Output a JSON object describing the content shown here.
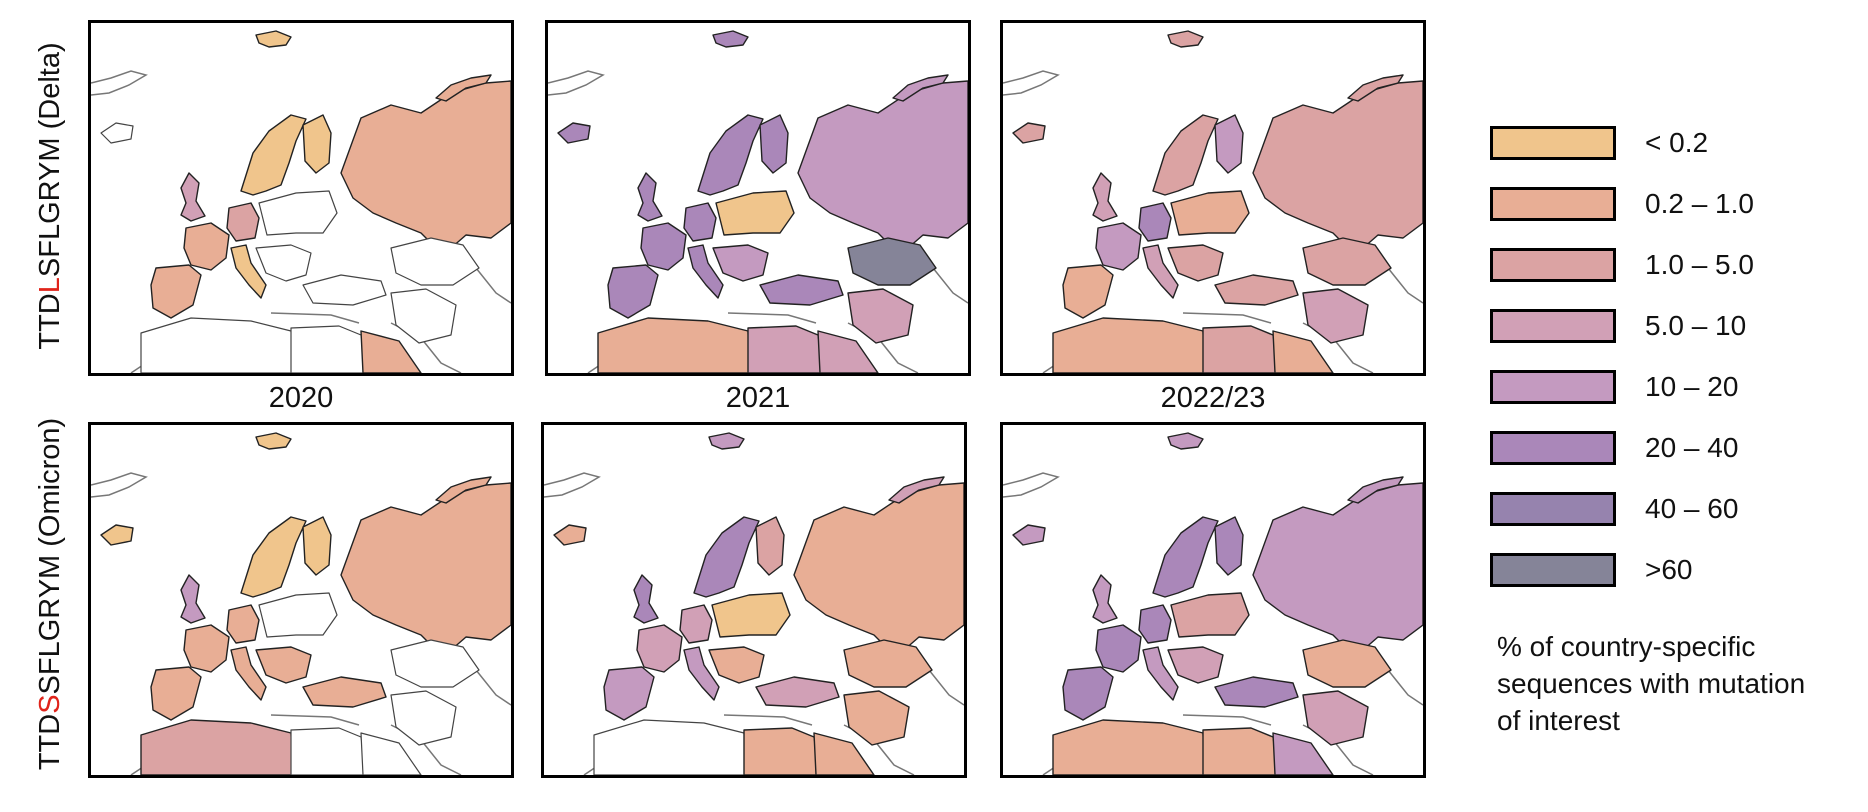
{
  "rows": [
    {
      "prefix": "TTD",
      "mutation": "L",
      "suffix": "SFLGRYM (Delta)"
    },
    {
      "prefix": "TTD",
      "mutation": "S",
      "suffix": "SFLGRYM (Omicron)"
    }
  ],
  "years": [
    "2020",
    "2021",
    "2022/23"
  ],
  "legend": {
    "items": [
      {
        "label": "< 0.2",
        "color": "#f0c58c"
      },
      {
        "label": "0.2 – 1.0",
        "color": "#e8ae95"
      },
      {
        "label": "1.0 – 5.0",
        "color": "#dba3a3"
      },
      {
        "label": "5.0 – 10",
        "color": "#d1a0b6"
      },
      {
        "label": "10 – 20",
        "color": "#c49ac0"
      },
      {
        "label": "20 – 40",
        "color": "#aa87b9"
      },
      {
        "label": "40 – 60",
        "color": "#9683ae"
      },
      {
        "label": ">60",
        "color": "#858498"
      }
    ],
    "caption": [
      "% of country-specific",
      "sequences with mutation",
      "of interest"
    ]
  },
  "map_data": {
    "country_bins": [
      {
        "scandinavia": 0,
        "finland": 0,
        "russia": 1,
        "iberia": 1,
        "france": 1,
        "uk": 3,
        "germany": 2,
        "italy": 0,
        "turkey": 9,
        "north_africa": 9,
        "egypt_libya": 9,
        "arabia": 1,
        "iran": 9,
        "central_asia": 9,
        "iceland": 9,
        "svalbard": 0,
        "novaya_zemlya": 1,
        "balkans": 9,
        "east_europe": 9
      },
      {
        "scandinavia": 5,
        "finland": 5,
        "russia": 4,
        "iberia": 5,
        "france": 5,
        "uk": 5,
        "germany": 5,
        "italy": 5,
        "turkey": 5,
        "north_africa": 1,
        "egypt_libya": 3,
        "arabia": 3,
        "iran": 3,
        "central_asia": 7,
        "iceland": 5,
        "svalbard": 5,
        "novaya_zemlya": 4,
        "balkans": 4,
        "east_europe": 0
      },
      {
        "scandinavia": 2,
        "finland": 4,
        "russia": 2,
        "iberia": 1,
        "france": 4,
        "uk": 3,
        "germany": 5,
        "italy": 3,
        "turkey": 2,
        "north_africa": 1,
        "egypt_libya": 2,
        "arabia": 1,
        "iran": 3,
        "central_asia": 2,
        "iceland": 2,
        "svalbard": 2,
        "novaya_zemlya": 2,
        "balkans": 2,
        "east_europe": 1
      },
      {
        "scandinavia": 0,
        "finland": 0,
        "russia": 1,
        "iberia": 1,
        "france": 1,
        "uk": 4,
        "germany": 1,
        "italy": 1,
        "turkey": 1,
        "north_africa": 2,
        "egypt_libya": 9,
        "arabia": 9,
        "iran": 9,
        "central_asia": 9,
        "iceland": 0,
        "svalbard": 0,
        "novaya_zemlya": 1,
        "balkans": 1,
        "east_europe": 9
      },
      {
        "scandinavia": 5,
        "finland": 2,
        "russia": 1,
        "iberia": 4,
        "france": 3,
        "uk": 5,
        "germany": 3,
        "italy": 4,
        "turkey": 3,
        "north_africa": 9,
        "egypt_libya": 1,
        "arabia": 1,
        "iran": 1,
        "central_asia": 1,
        "iceland": 1,
        "svalbard": 4,
        "novaya_zemlya": 3,
        "balkans": 1,
        "east_europe": 0
      },
      {
        "scandinavia": 5,
        "finland": 5,
        "russia": 4,
        "iberia": 5,
        "france": 5,
        "uk": 4,
        "germany": 5,
        "italy": 4,
        "turkey": 5,
        "north_africa": 1,
        "egypt_libya": 1,
        "arabia": 4,
        "iran": 3,
        "central_asia": 1,
        "iceland": 4,
        "svalbard": 4,
        "novaya_zemlya": 4,
        "balkans": 3,
        "east_europe": 2
      }
    ]
  }
}
